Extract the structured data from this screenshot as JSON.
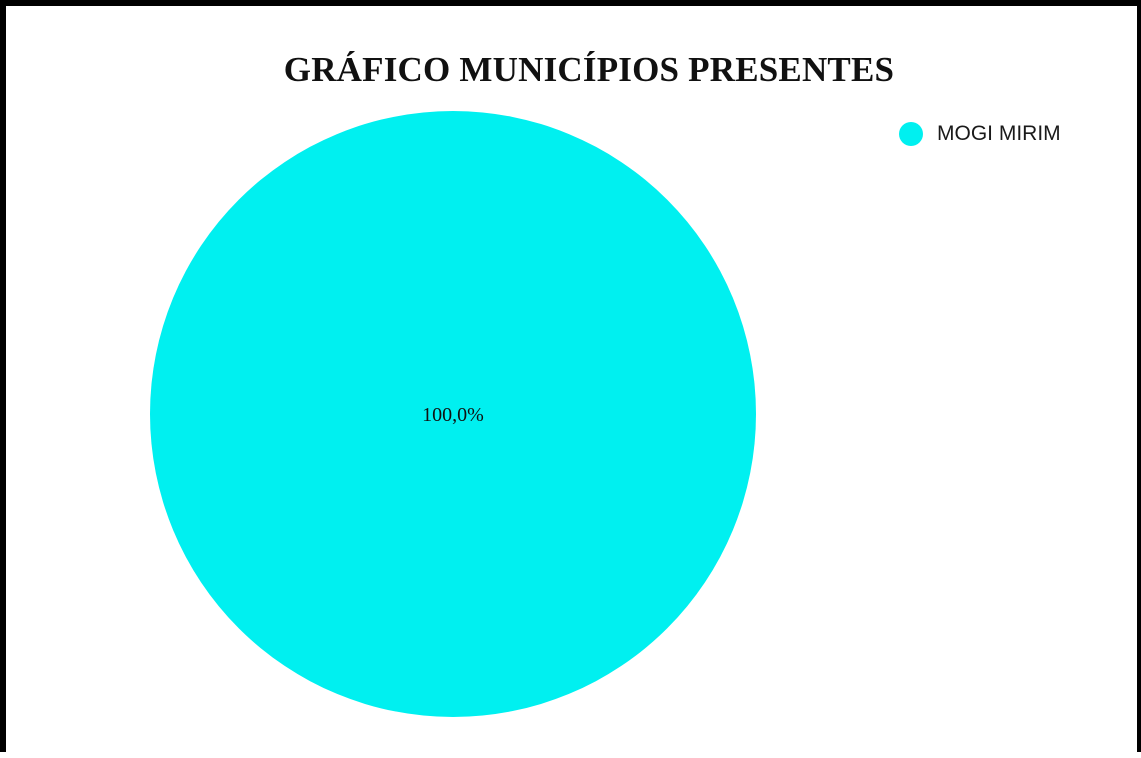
{
  "chart_data": {
    "type": "pie",
    "title": "GRÁFICO MUNICÍPIOS PRESENTES",
    "categories": [
      "MOGI MIRIM"
    ],
    "values": [
      100.0
    ],
    "labels": [
      "100,0%"
    ],
    "colors": [
      "#00F0F0"
    ],
    "legend": {
      "placement": "top-right",
      "entries": [
        "MOGI MIRIM"
      ]
    }
  }
}
